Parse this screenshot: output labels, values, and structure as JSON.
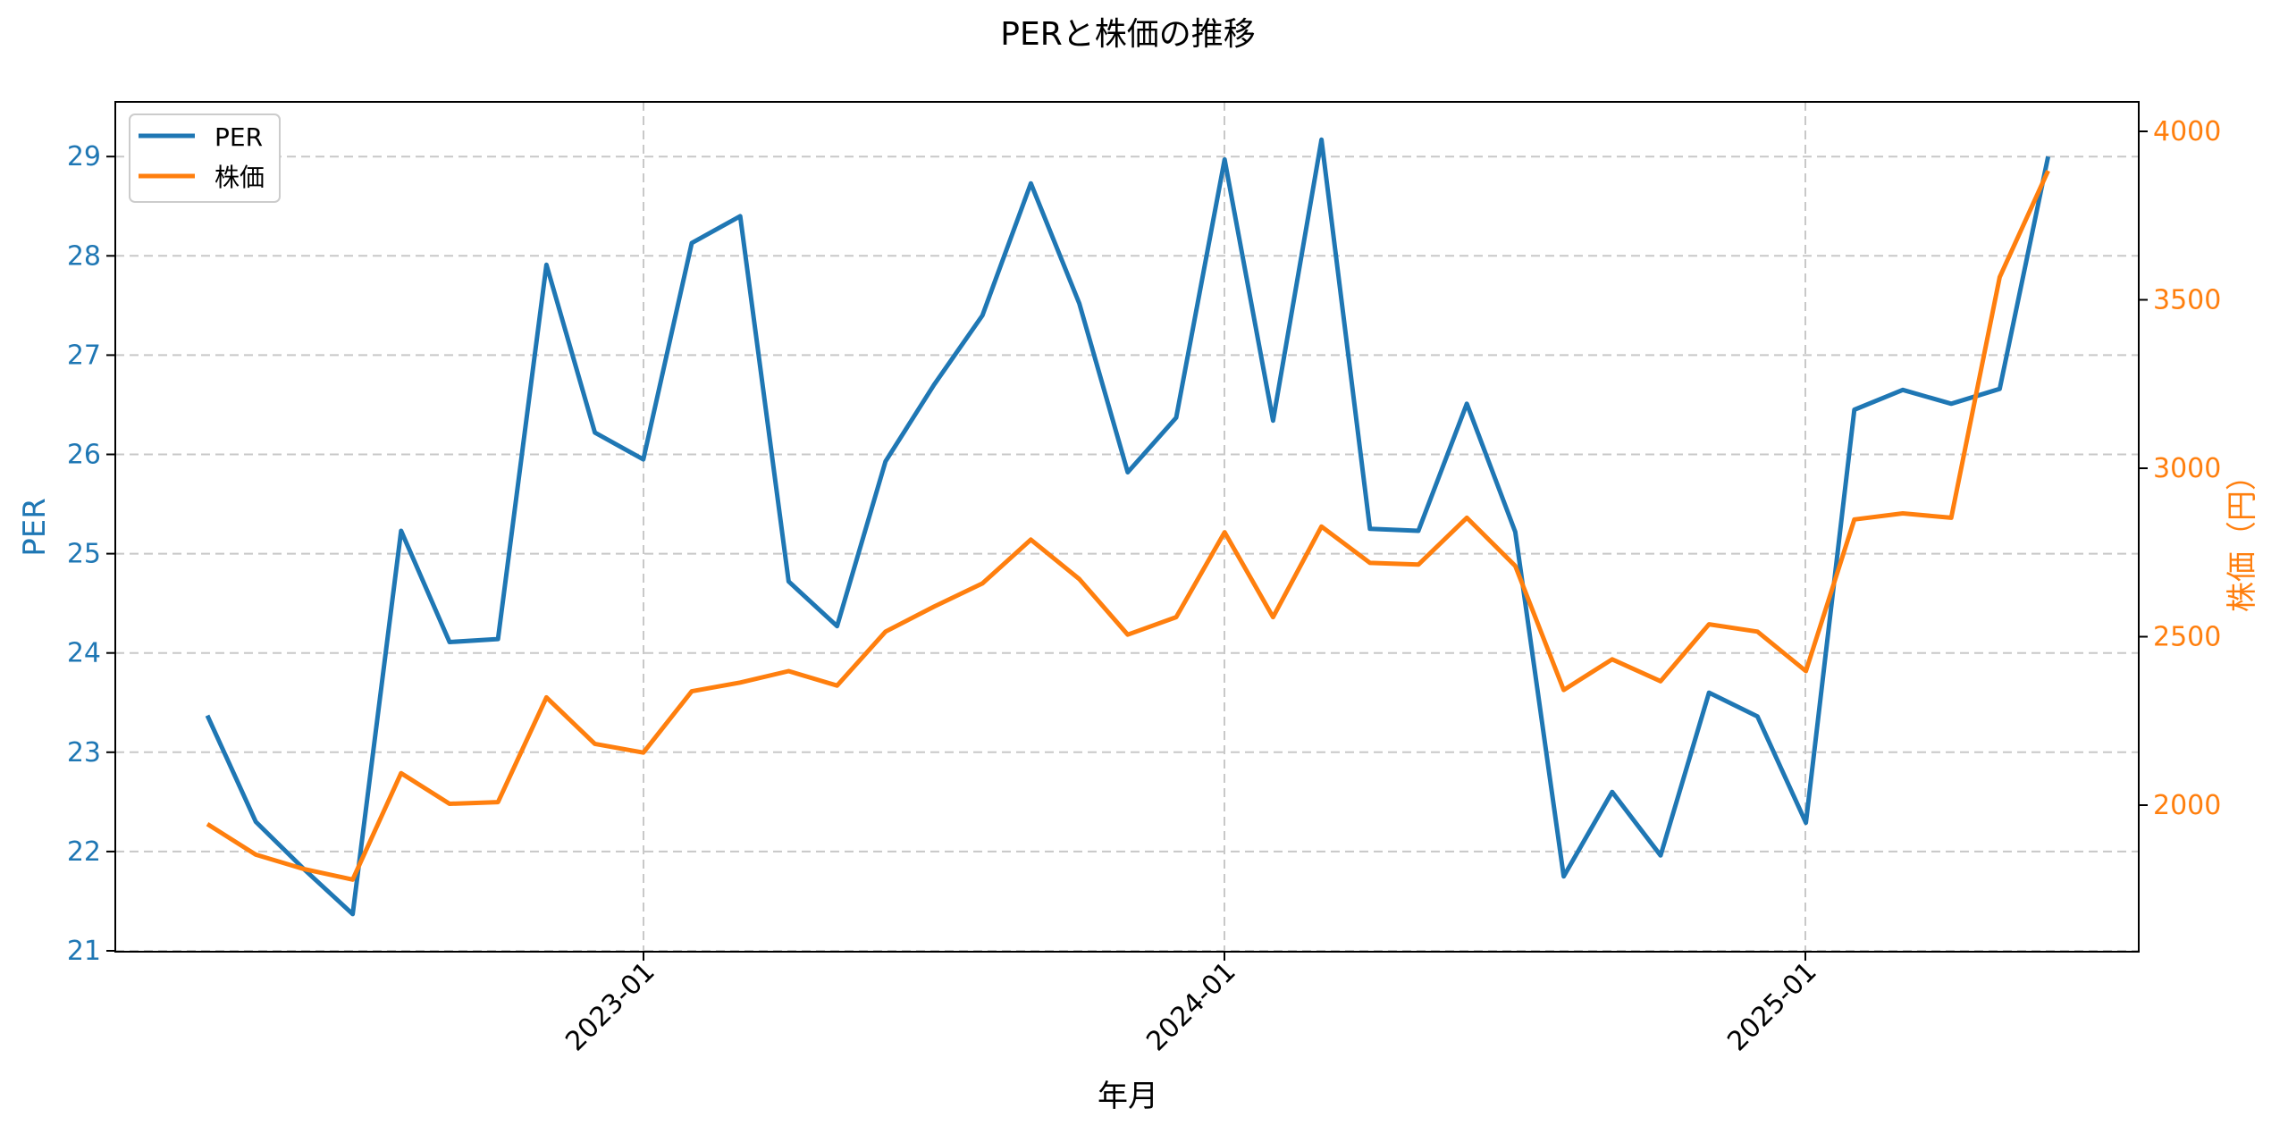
{
  "chart_data": {
    "type": "line",
    "title": "PERと株価の推移",
    "xlabel": "年月",
    "ylabel": "PER",
    "ylabel_right": "株価（円）",
    "x_tick_labels": [
      "2023-01",
      "2024-01",
      "2025-01"
    ],
    "y_ticks_left": [
      21,
      22,
      23,
      24,
      25,
      26,
      27,
      28,
      29
    ],
    "y_ticks_right": [
      2000,
      2500,
      3000,
      3500,
      4000
    ],
    "ylim": [
      21,
      29.55
    ],
    "ylim_right": [
      1600,
      4080
    ],
    "grid": true,
    "legend_position": "upper left",
    "x": [
      "2022-04",
      "2022-05",
      "2022-06",
      "2022-07",
      "2022-08",
      "2022-09",
      "2022-10",
      "2022-11",
      "2022-12",
      "2023-01",
      "2023-02",
      "2023-03",
      "2023-04",
      "2023-05",
      "2023-06",
      "2023-07",
      "2023-08",
      "2023-09",
      "2023-10",
      "2023-11",
      "2023-12",
      "2024-01",
      "2024-02",
      "2024-03",
      "2024-04",
      "2024-05",
      "2024-06",
      "2024-07",
      "2024-08",
      "2024-09",
      "2024-10",
      "2024-11",
      "2024-12",
      "2025-01",
      "2025-02",
      "2025-03",
      "2025-04",
      "2025-05",
      "2025-06"
    ],
    "series": [
      {
        "name": "PER",
        "axis": "left",
        "color": "#1f77b4",
        "values": [
          23.37,
          22.3,
          21.82,
          21.37,
          25.23,
          24.11,
          24.14,
          27.91,
          26.22,
          25.95,
          28.13,
          28.4,
          24.72,
          24.27,
          25.93,
          26.7,
          27.4,
          28.73,
          27.52,
          25.82,
          26.37,
          28.97,
          26.34,
          29.17,
          25.25,
          25.23,
          26.51,
          25.22,
          21.75,
          22.6,
          21.96,
          23.6,
          23.36,
          22.29,
          26.45,
          26.65,
          26.51,
          26.66,
          29.0
        ]
      },
      {
        "name": "株価",
        "axis": "right",
        "color": "#ff7f0e",
        "values": [
          1944,
          1853,
          1810,
          1779,
          2095,
          2004,
          2009,
          2320,
          2182,
          2156,
          2338,
          2364,
          2398,
          2355,
          2515,
          2589,
          2658,
          2788,
          2671,
          2506,
          2558,
          2810,
          2558,
          2827,
          2719,
          2714,
          2853,
          2710,
          2342,
          2433,
          2368,
          2537,
          2515,
          2398,
          2848,
          2866,
          2853,
          3567,
          3883
        ]
      }
    ]
  },
  "legend": {
    "items": [
      {
        "label": "PER",
        "color": "#1f77b4"
      },
      {
        "label": "株価",
        "color": "#ff7f0e"
      }
    ]
  }
}
